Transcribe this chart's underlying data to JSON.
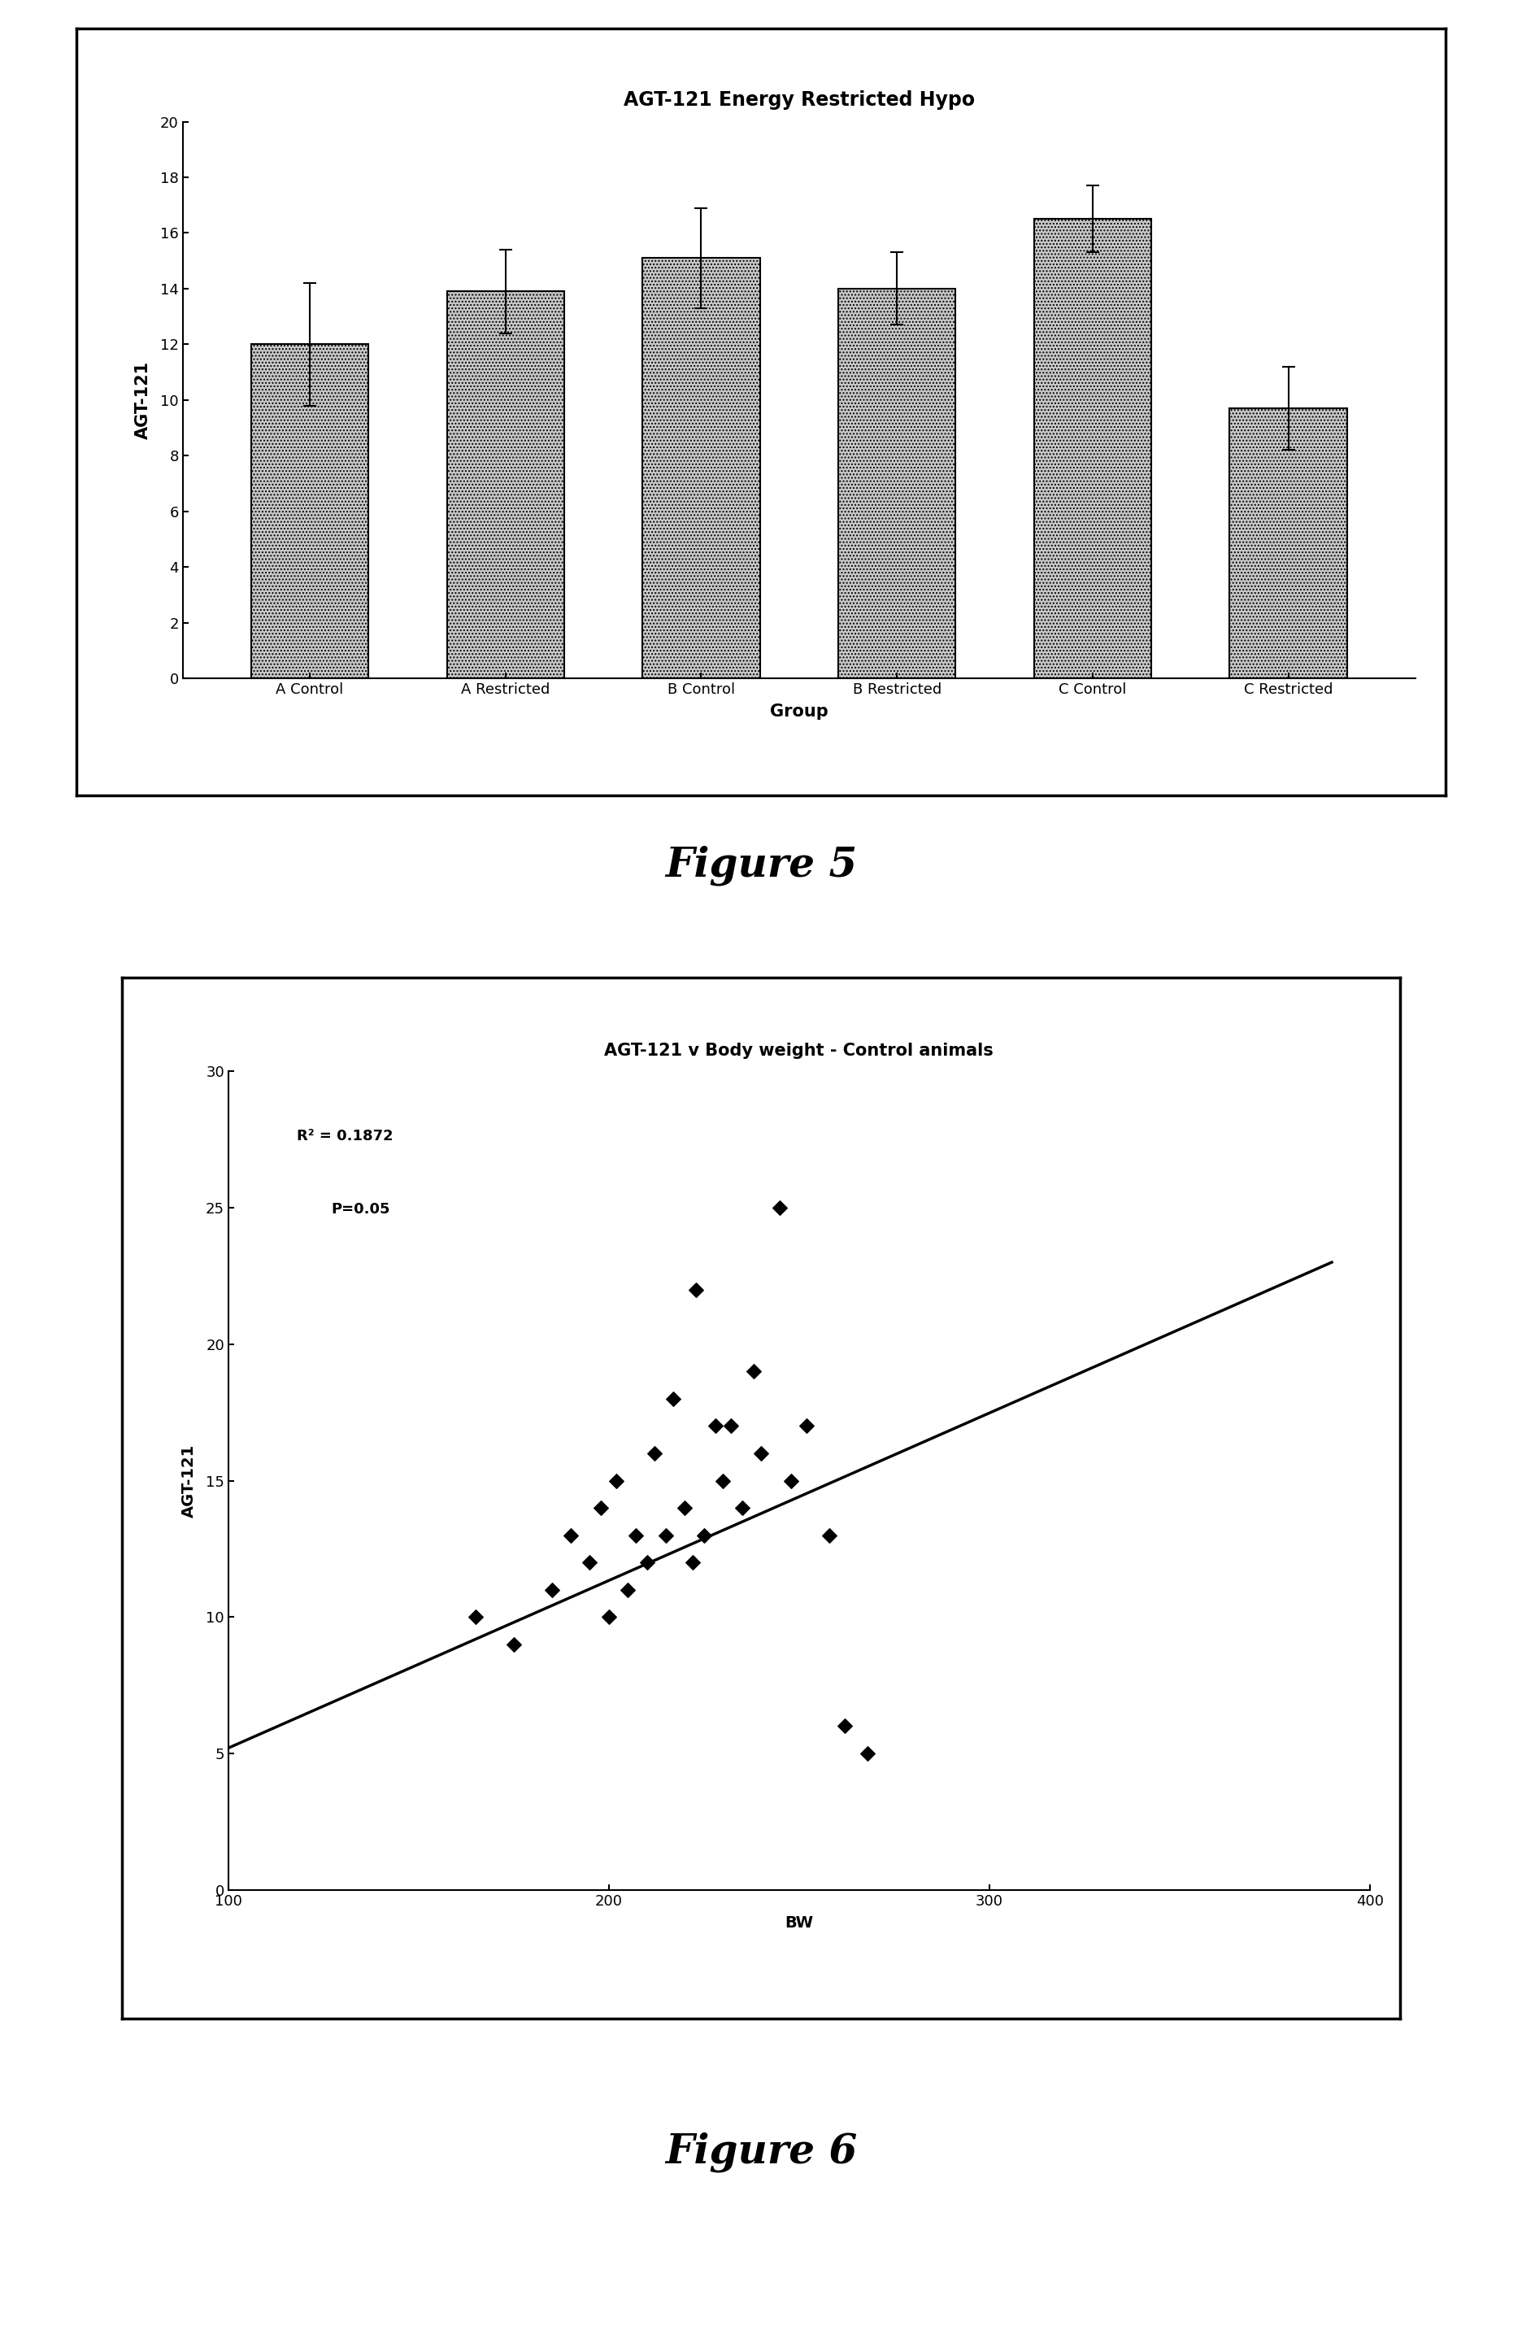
{
  "fig5": {
    "title": "AGT-121 Energy Restricted Hypo",
    "xlabel": "Group",
    "ylabel": "AGT-121",
    "categories": [
      "A Control",
      "A Restricted",
      "B Control",
      "B Restricted",
      "C Control",
      "C Restricted"
    ],
    "values": [
      12.0,
      13.9,
      15.1,
      14.0,
      16.5,
      9.7
    ],
    "errors": [
      2.2,
      1.5,
      1.8,
      1.3,
      1.2,
      1.5
    ],
    "ylim": [
      0,
      20
    ],
    "yticks": [
      0,
      2,
      4,
      6,
      8,
      10,
      12,
      14,
      16,
      18,
      20
    ],
    "bar_color": "#c8c8c8",
    "bar_hatch": "....",
    "title_fontsize": 17,
    "label_fontsize": 15,
    "tick_fontsize": 13
  },
  "fig6": {
    "title": "AGT-121 v Body weight - Control animals",
    "xlabel": "BW",
    "ylabel": "AGT-121",
    "scatter_x": [
      165,
      175,
      185,
      190,
      195,
      198,
      200,
      202,
      205,
      207,
      210,
      212,
      215,
      217,
      220,
      222,
      223,
      225,
      228,
      230,
      232,
      235,
      238,
      240,
      245,
      248,
      252,
      258,
      262,
      268
    ],
    "scatter_y": [
      10,
      9,
      11,
      13,
      12,
      14,
      10,
      15,
      11,
      13,
      12,
      16,
      13,
      18,
      14,
      12,
      22,
      13,
      17,
      15,
      17,
      14,
      19,
      16,
      25,
      15,
      17,
      13,
      6,
      5
    ],
    "line_x": [
      100,
      390
    ],
    "line_y": [
      5.2,
      23.0
    ],
    "r2_text": "R² = 0.1872",
    "p_text": "P=0.05",
    "xlim": [
      100,
      400
    ],
    "ylim": [
      0,
      30
    ],
    "xticks": [
      100,
      200,
      300,
      400
    ],
    "yticks": [
      0,
      5,
      10,
      15,
      20,
      25,
      30
    ],
    "scatter_color": "#000000",
    "line_color": "#000000",
    "title_fontsize": 15,
    "label_fontsize": 14,
    "tick_fontsize": 13,
    "annotation_fontsize": 13
  },
  "figure5_label": "Figure 5",
  "figure6_label": "Figure 6",
  "figure_label_fontsize": 36,
  "bg_color": "#ffffff"
}
